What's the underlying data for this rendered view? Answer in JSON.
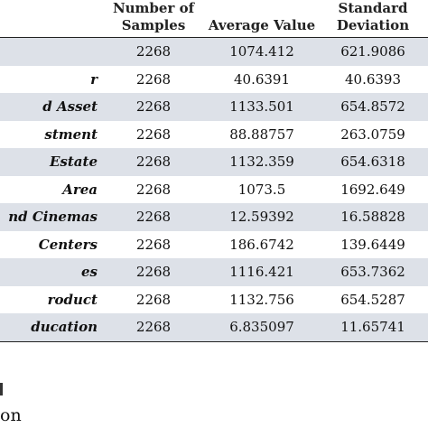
{
  "table": {
    "headers": {
      "name": "",
      "samples": "Number of Samples",
      "average": "Average Value",
      "stddev": "Standard Deviation"
    },
    "rows": [
      {
        "name": "",
        "samples": "2268",
        "average": "1074.412",
        "stddev": "621.9086",
        "shaded": true
      },
      {
        "name": "r",
        "samples": "2268",
        "average": "40.6391",
        "stddev": "40.6393",
        "shaded": false
      },
      {
        "name": "d Asset",
        "samples": "2268",
        "average": "1133.501",
        "stddev": "654.8572",
        "shaded": true
      },
      {
        "name": "stment",
        "samples": "2268",
        "average": "88.88757",
        "stddev": "263.0759",
        "shaded": false
      },
      {
        "name": " Estate",
        "samples": "2268",
        "average": "1132.359",
        "stddev": "654.6318",
        "shaded": true
      },
      {
        "name": "Area",
        "samples": "2268",
        "average": "1073.5",
        "stddev": "1692.649",
        "shaded": false
      },
      {
        "name": "nd Cinemas",
        "samples": "2268",
        "average": "12.59392",
        "stddev": "16.58828",
        "shaded": true
      },
      {
        "name": " Centers",
        "samples": "2268",
        "average": "186.6742",
        "stddev": "139.6449",
        "shaded": false
      },
      {
        "name": "es",
        "samples": "2268",
        "average": "1116.421",
        "stddev": "653.7362",
        "shaded": true
      },
      {
        "name": "roduct",
        "samples": "2268",
        "average": "1132.756",
        "stddev": "654.5287",
        "shaded": false
      },
      {
        "name": "ducation",
        "samples": "2268",
        "average": "6.835097",
        "stddev": "11.65741",
        "shaded": true
      }
    ]
  },
  "footer": {
    "text": "on"
  }
}
